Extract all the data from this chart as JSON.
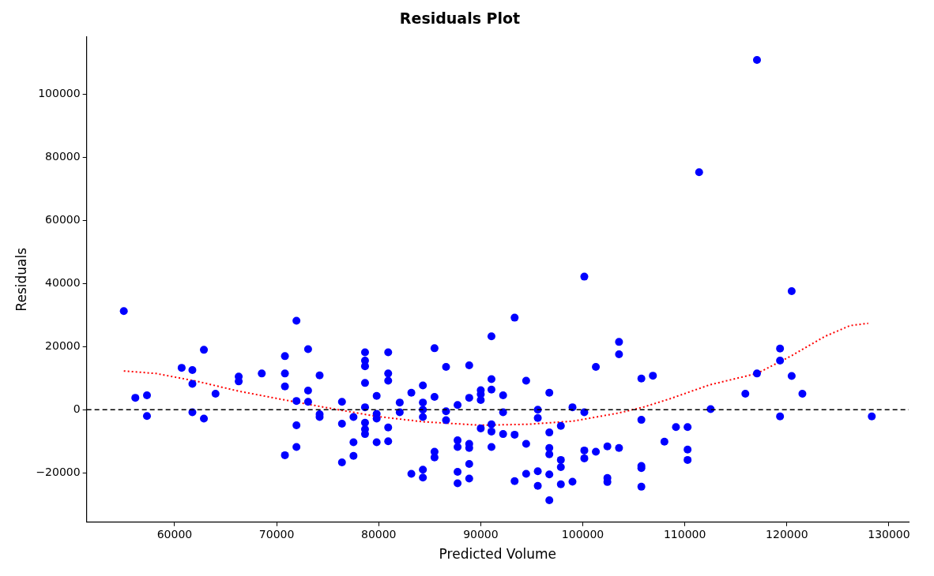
{
  "chart_data": {
    "type": "scatter",
    "title": "Residuals Plot",
    "xlabel": "Predicted Volume",
    "ylabel": "Residuals",
    "xlim": [
      51380,
      131940
    ],
    "ylim": [
      -35640,
      118200
    ],
    "xticks": [
      60000,
      70000,
      80000,
      90000,
      100000,
      110000,
      120000,
      130000
    ],
    "yticks": [
      {
        "value": -20000,
        "label": "−20000"
      },
      0,
      20000,
      40000,
      60000,
      80000,
      100000
    ],
    "grid": false,
    "legend": false,
    "marker": "circle",
    "ref_lines": [
      {
        "axis": "y",
        "value": 0,
        "color": "#000000",
        "line_style": "dashed"
      }
    ],
    "series": [
      {
        "type": "scatter",
        "color": "#0000ff",
        "x": [
          55020,
          56150,
          57290,
          57290,
          60690,
          61740,
          61740,
          61740,
          62870,
          62870,
          64010,
          66280,
          66280,
          68540,
          70810,
          70810,
          70810,
          70810,
          71940,
          71940,
          71940,
          71940,
          73080,
          73080,
          73080,
          74210,
          74210,
          74210,
          76400,
          76400,
          76400,
          77530,
          77530,
          77530,
          78660,
          78660,
          78660,
          78660,
          78660,
          78660,
          78660,
          78660,
          79800,
          79800,
          79800,
          79800,
          80930,
          80930,
          80930,
          80930,
          80930,
          82060,
          82060,
          83200,
          83200,
          84330,
          84330,
          84330,
          84330,
          84330,
          84330,
          85470,
          85470,
          85470,
          85470,
          86600,
          86600,
          86600,
          87730,
          87730,
          87730,
          87730,
          87730,
          88870,
          88870,
          88870,
          88870,
          88870,
          88870,
          90000,
          90000,
          90000,
          90000,
          91050,
          91050,
          91050,
          91050,
          91050,
          91050,
          92190,
          92190,
          92190,
          93320,
          93320,
          93320,
          94450,
          94450,
          94450,
          95590,
          95590,
          95590,
          95590,
          96720,
          96720,
          96720,
          96720,
          96720,
          96720,
          97850,
          97850,
          97850,
          97850,
          98990,
          98990,
          100150,
          100150,
          100150,
          100150,
          101280,
          101280,
          102410,
          102410,
          102410,
          103550,
          103550,
          103550,
          105740,
          105740,
          105740,
          105740,
          105740,
          106870,
          108000,
          109130,
          110270,
          110270,
          110270,
          111400,
          112530,
          115930,
          117070,
          117070,
          119330,
          119330,
          119330,
          120470,
          120470,
          121520,
          128320
        ],
        "values": [
          31300,
          3800,
          4600,
          -2000,
          13300,
          12600,
          8200,
          -800,
          19000,
          -2800,
          5100,
          10500,
          9000,
          11500,
          17000,
          11500,
          7400,
          -14400,
          28200,
          2800,
          -4900,
          -11800,
          19200,
          6100,
          2500,
          10900,
          -1400,
          -2300,
          2500,
          -4400,
          -16700,
          -2300,
          -10300,
          -14600,
          18200,
          15600,
          13800,
          8500,
          800,
          -4100,
          -6200,
          -7700,
          4400,
          -1300,
          -2800,
          -10300,
          18200,
          11500,
          9200,
          -5600,
          -10000,
          2300,
          -800,
          5400,
          -20300,
          7700,
          2300,
          0,
          -2300,
          -19000,
          -21500,
          19500,
          4100,
          -13300,
          -15100,
          13600,
          -500,
          -3300,
          1500,
          -9700,
          -11800,
          -19700,
          -23300,
          14100,
          3800,
          -10800,
          -12100,
          -17200,
          -21800,
          6200,
          4900,
          3100,
          -5900,
          23300,
          9700,
          6400,
          -4600,
          -6900,
          -11800,
          4600,
          -800,
          -7700,
          29200,
          -7900,
          -22600,
          9200,
          -10800,
          -20300,
          0,
          -2600,
          -19500,
          -24100,
          5400,
          -7200,
          -12100,
          -14100,
          -20500,
          -28700,
          -5100,
          -15900,
          -18200,
          -23600,
          800,
          -22800,
          42200,
          -800,
          -12900,
          -15400,
          13600,
          -13300,
          -11600,
          -21600,
          -22900,
          21500,
          17600,
          -12100,
          9900,
          -3200,
          -17800,
          -18500,
          -24400,
          10800,
          -10100,
          -5500,
          -5500,
          -12600,
          -15900,
          75300,
          200,
          5100,
          11500,
          110900,
          19400,
          15600,
          -2100,
          37600,
          10700,
          5100,
          -2100
        ]
      },
      {
        "type": "line",
        "color": "#ff0000",
        "line_style": "dotted",
        "marker": "none",
        "x": [
          55020,
          58180,
          62230,
          66280,
          70810,
          75180,
          79800,
          84330,
          90000,
          94610,
          99070,
          103550,
          105900,
          108380,
          112430,
          117070,
          120500,
          123760,
          126200,
          127970
        ],
        "values": [
          12300,
          11500,
          9000,
          5900,
          3100,
          500,
          -2100,
          -3800,
          -4900,
          -4600,
          -3600,
          -1000,
          800,
          3300,
          7900,
          11500,
          17200,
          23300,
          26700,
          27400
        ]
      }
    ]
  }
}
